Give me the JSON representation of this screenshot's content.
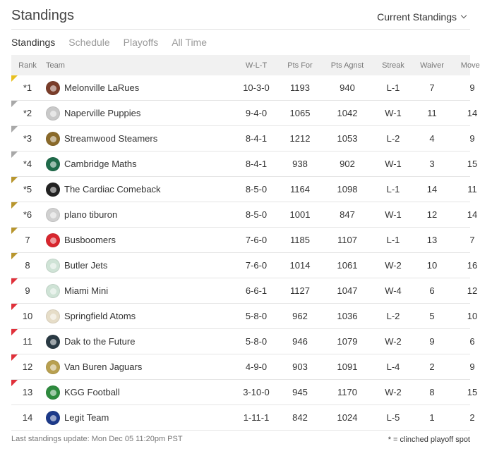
{
  "header": {
    "title": "Standings",
    "view_select": "Current Standings"
  },
  "tabs": [
    {
      "label": "Standings",
      "active": true
    },
    {
      "label": "Schedule",
      "active": false
    },
    {
      "label": "Playoffs",
      "active": false
    },
    {
      "label": "All Time",
      "active": false
    }
  ],
  "columns": {
    "rank": "Rank",
    "team": "Team",
    "wlt": "W-L-T",
    "pts_for": "Pts For",
    "pts_against": "Pts Agnst",
    "streak": "Streak",
    "waiver": "Waiver",
    "moves": "Moves"
  },
  "flag_colors": {
    "gold": "#e8c020",
    "gray": "#a8a8a8",
    "olive": "#b8962e",
    "red": "#e0303a"
  },
  "rows": [
    {
      "rank": "*1",
      "flag": "gold",
      "logo_color": "#7a3d2a",
      "logo_icon": "portrait-logo-icon",
      "team": "Melonville LaRues",
      "wlt": "10-3-0",
      "pf": "1193",
      "pa": "940",
      "streak": "L-1",
      "waiver": "7",
      "moves": "9"
    },
    {
      "rank": "*2",
      "flag": "gray",
      "logo_color": "#c9c9c9",
      "logo_icon": "puppy-logo-icon",
      "team": "Naperville Puppies",
      "wlt": "9-4-0",
      "pf": "1065",
      "pa": "1042",
      "streak": "W-1",
      "waiver": "11",
      "moves": "14"
    },
    {
      "rank": "*3",
      "flag": "gray",
      "logo_color": "#8a6a2a",
      "logo_icon": "steamer-logo-icon",
      "team": "Streamwood Steamers",
      "wlt": "8-4-1",
      "pf": "1212",
      "pa": "1053",
      "streak": "L-2",
      "waiver": "4",
      "moves": "9"
    },
    {
      "rank": "*4",
      "flag": "gray",
      "logo_color": "#1f6b4a",
      "logo_icon": "jets-logo-icon",
      "team": "Cambridge Maths",
      "wlt": "8-4-1",
      "pf": "938",
      "pa": "902",
      "streak": "W-1",
      "waiver": "3",
      "moves": "15"
    },
    {
      "rank": "*5",
      "flag": "olive",
      "logo_color": "#222222",
      "logo_icon": "skull-logo-icon",
      "team": "The Cardiac Comeback",
      "wlt": "8-5-0",
      "pf": "1164",
      "pa": "1098",
      "streak": "L-1",
      "waiver": "14",
      "moves": "11"
    },
    {
      "rank": "*6",
      "flag": "olive",
      "logo_color": "#d0d0d0",
      "logo_icon": "helmet-logo-icon",
      "team": "plano tiburon",
      "wlt": "8-5-0",
      "pf": "1001",
      "pa": "847",
      "streak": "W-1",
      "waiver": "12",
      "moves": "14"
    },
    {
      "rank": "7",
      "flag": "olive",
      "logo_color": "#d8262e",
      "logo_icon": "helmet-logo-icon",
      "team": "Busboomers",
      "wlt": "7-6-0",
      "pf": "1185",
      "pa": "1107",
      "streak": "L-1",
      "waiver": "13",
      "moves": "7"
    },
    {
      "rank": "8",
      "flag": "olive",
      "logo_color": "#cfe3d6",
      "logo_icon": "helmet-logo-icon",
      "team": "Butler Jets",
      "wlt": "7-6-0",
      "pf": "1014",
      "pa": "1061",
      "streak": "W-2",
      "waiver": "10",
      "moves": "16"
    },
    {
      "rank": "9",
      "flag": "red",
      "logo_color": "#cfe3d6",
      "logo_icon": "helmet-logo-icon",
      "team": "Miami Mini",
      "wlt": "6-6-1",
      "pf": "1127",
      "pa": "1047",
      "streak": "W-4",
      "waiver": "6",
      "moves": "12"
    },
    {
      "rank": "10",
      "flag": "red",
      "logo_color": "#e6ddc8",
      "logo_icon": "atom-logo-icon",
      "team": "Springfield Atoms",
      "wlt": "5-8-0",
      "pf": "962",
      "pa": "1036",
      "streak": "L-2",
      "waiver": "5",
      "moves": "10"
    },
    {
      "rank": "11",
      "flag": "red",
      "logo_color": "#2a3a44",
      "logo_icon": "portrait-logo-icon",
      "team": "Dak to the Future",
      "wlt": "5-8-0",
      "pf": "946",
      "pa": "1079",
      "streak": "W-2",
      "waiver": "9",
      "moves": "6"
    },
    {
      "rank": "12",
      "flag": "red",
      "logo_color": "#b8a050",
      "logo_icon": "helmet-logo-icon",
      "team": "Van Buren Jaguars",
      "wlt": "4-9-0",
      "pf": "903",
      "pa": "1091",
      "streak": "L-4",
      "waiver": "2",
      "moves": "9"
    },
    {
      "rank": "13",
      "flag": "red",
      "logo_color": "#2e8b3e",
      "logo_icon": "helmet-logo-icon",
      "team": "KGG Football",
      "wlt": "3-10-0",
      "pf": "945",
      "pa": "1170",
      "streak": "W-2",
      "waiver": "8",
      "moves": "15"
    },
    {
      "rank": "14",
      "flag": "none",
      "logo_color": "#1d3a8a",
      "logo_icon": "helmet-logo-icon",
      "team": "Legit Team",
      "wlt": "1-11-1",
      "pf": "842",
      "pa": "1024",
      "streak": "L-5",
      "waiver": "1",
      "moves": "2"
    }
  ],
  "footer": {
    "last_update": "Last standings update: Mon Dec 05 11:20pm PST",
    "legend": "* = clinched playoff spot"
  }
}
